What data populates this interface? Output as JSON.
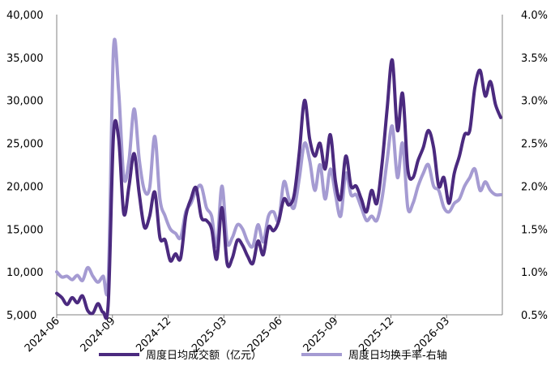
{
  "chart_data": {
    "type": "line",
    "title": "",
    "x_tick_labels": [
      "2024-06",
      "2024-09",
      "2024-12",
      "2025-03",
      "2025-06",
      "2025-09",
      "2025-12",
      "2026-03"
    ],
    "y_left": {
      "lim": [
        5000,
        40000
      ],
      "ticks": [
        "5,000",
        "10,000",
        "15,000",
        "20,000",
        "25,000",
        "30,000",
        "35,000",
        "40,000"
      ]
    },
    "y_right": {
      "lim": [
        0.5,
        4.0
      ],
      "ticks": [
        "0.5%",
        "1.0%",
        "1.5%",
        "2.0%",
        "2.5%",
        "3.0%",
        "3.5%",
        "4.0%"
      ]
    },
    "grid": false,
    "legend_position": "bottom",
    "series": [
      {
        "name": "周度日均成交额（亿元）",
        "axis": "left",
        "color": "#4b2a7f",
        "values": [
          7500,
          7000,
          6200,
          7000,
          6400,
          7200,
          5500,
          5200,
          6300,
          5300,
          6500,
          26000,
          25500,
          16800,
          20000,
          23800,
          19000,
          15200,
          16500,
          19300,
          14000,
          13700,
          11300,
          12100,
          11600,
          16500,
          18500,
          19800,
          16400,
          16000,
          15000,
          11500,
          17500,
          11000,
          11600,
          13700,
          13100,
          11800,
          11000,
          13600,
          12000,
          15200,
          14800,
          15900,
          18500,
          17800,
          19000,
          24000,
          30000,
          25500,
          23500,
          25000,
          22000,
          26000,
          20500,
          18500,
          23500,
          20000,
          20000,
          18500,
          17000,
          19500,
          18000,
          22500,
          29000,
          34700,
          26500,
          30800,
          22000,
          21000,
          23000,
          24500,
          26500,
          24500,
          20000,
          21000,
          18000,
          21500,
          23500,
          26000,
          26500,
          31500,
          33500,
          30500,
          32200,
          29500,
          28000
        ]
      },
      {
        "name": "周度日均换手率-右轴",
        "axis": "right",
        "color": "#a59bd2",
        "values": [
          1.0,
          0.94,
          0.95,
          0.91,
          0.96,
          0.9,
          1.05,
          0.95,
          0.88,
          0.95,
          0.92,
          3.6,
          3.1,
          2.1,
          2.3,
          2.9,
          2.3,
          1.95,
          1.98,
          2.58,
          1.85,
          1.65,
          1.5,
          1.45,
          1.4,
          1.7,
          1.8,
          1.95,
          2.0,
          1.75,
          1.65,
          1.3,
          2.0,
          1.35,
          1.4,
          1.55,
          1.5,
          1.35,
          1.3,
          1.55,
          1.35,
          1.65,
          1.7,
          1.6,
          2.05,
          1.85,
          1.75,
          2.1,
          2.5,
          2.3,
          1.95,
          2.25,
          1.85,
          2.2,
          1.9,
          1.65,
          2.15,
          1.9,
          1.9,
          1.75,
          1.6,
          1.65,
          1.6,
          1.85,
          2.3,
          2.7,
          2.1,
          2.5,
          1.75,
          1.8,
          2.0,
          2.15,
          2.25,
          2.0,
          1.95,
          1.75,
          1.7,
          1.8,
          1.85,
          2.0,
          2.1,
          2.2,
          1.95,
          2.05,
          1.95,
          1.9,
          1.9
        ]
      }
    ]
  }
}
